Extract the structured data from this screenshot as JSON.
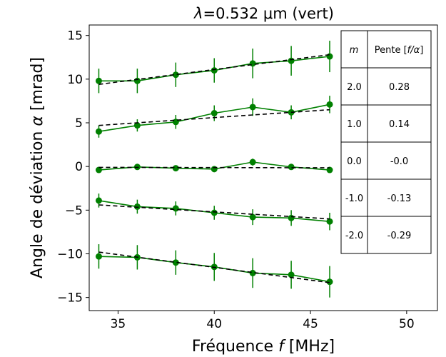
{
  "chart_data": {
    "type": "line",
    "title_prefix": "λ",
    "title_rest": "=0.532 μm (vert)",
    "xlabel_text": "Fréquence ",
    "xlabel_var": "f",
    "xlabel_unit": " [MHz]",
    "ylabel_text": "Angle de déviation ",
    "ylabel_var": "α",
    "ylabel_unit": " [mrad]",
    "xlim": [
      33.5,
      51.6
    ],
    "ylim": [
      -16.5,
      16.2
    ],
    "x_ticks": [
      35,
      40,
      45,
      50
    ],
    "y_ticks": [
      -15,
      -10,
      -5,
      0,
      5,
      10,
      15
    ],
    "data_color": "#008000",
    "fit_color": "#000000",
    "series": [
      {
        "order": 2.0,
        "x": [
          34,
          36,
          38,
          40,
          42,
          44,
          46
        ],
        "y": [
          9.8,
          9.8,
          10.5,
          11.0,
          11.8,
          12.1,
          12.6
        ],
        "err": [
          1.4,
          1.4,
          1.4,
          1.4,
          1.7,
          1.7,
          1.8
        ],
        "fit": [
          9.4,
          12.8
        ]
      },
      {
        "order": 1.0,
        "x": [
          34,
          36,
          38,
          40,
          42,
          44,
          46
        ],
        "y": [
          4.0,
          4.7,
          5.1,
          6.1,
          6.8,
          6.2,
          7.1
        ],
        "err": [
          0.7,
          0.7,
          0.8,
          0.9,
          1.0,
          0.8,
          1.0
        ],
        "fit": [
          4.7,
          6.5
        ]
      },
      {
        "order": 0.0,
        "x": [
          34,
          36,
          38,
          40,
          42,
          44,
          46
        ],
        "y": [
          -0.4,
          -0.05,
          -0.2,
          -0.3,
          0.5,
          -0.05,
          -0.4
        ],
        "err": [
          0.3,
          0.3,
          0.3,
          0.3,
          0.4,
          0.3,
          0.3
        ],
        "fit": [
          -0.1,
          -0.15
        ]
      },
      {
        "order": -1.0,
        "x": [
          34,
          36,
          38,
          40,
          42,
          44,
          46
        ],
        "y": [
          -3.9,
          -4.6,
          -4.8,
          -5.3,
          -5.8,
          -5.9,
          -6.3
        ],
        "err": [
          0.8,
          0.8,
          0.8,
          0.8,
          0.9,
          0.9,
          1.0
        ],
        "fit": [
          -4.4,
          -6.0
        ]
      },
      {
        "order": -2.0,
        "x": [
          34,
          36,
          38,
          40,
          42,
          44,
          46
        ],
        "y": [
          -10.3,
          -10.4,
          -11.0,
          -11.5,
          -12.2,
          -12.4,
          -13.2
        ],
        "err": [
          1.4,
          1.4,
          1.4,
          1.6,
          1.7,
          1.6,
          1.8
        ],
        "fit": [
          -9.8,
          -13.3
        ]
      }
    ],
    "table": {
      "header_var": "m",
      "header_slope_prefix": "Pente [",
      "header_slope_var": "f/α",
      "header_slope_suffix": "]",
      "rows": [
        {
          "m": "2.0",
          "slope": "0.28"
        },
        {
          "m": "1.0",
          "slope": "0.14"
        },
        {
          "m": "0.0",
          "slope": "-0.0"
        },
        {
          "m": "-1.0",
          "slope": "-0.13"
        },
        {
          "m": "-2.0",
          "slope": "-0.29"
        }
      ]
    }
  }
}
